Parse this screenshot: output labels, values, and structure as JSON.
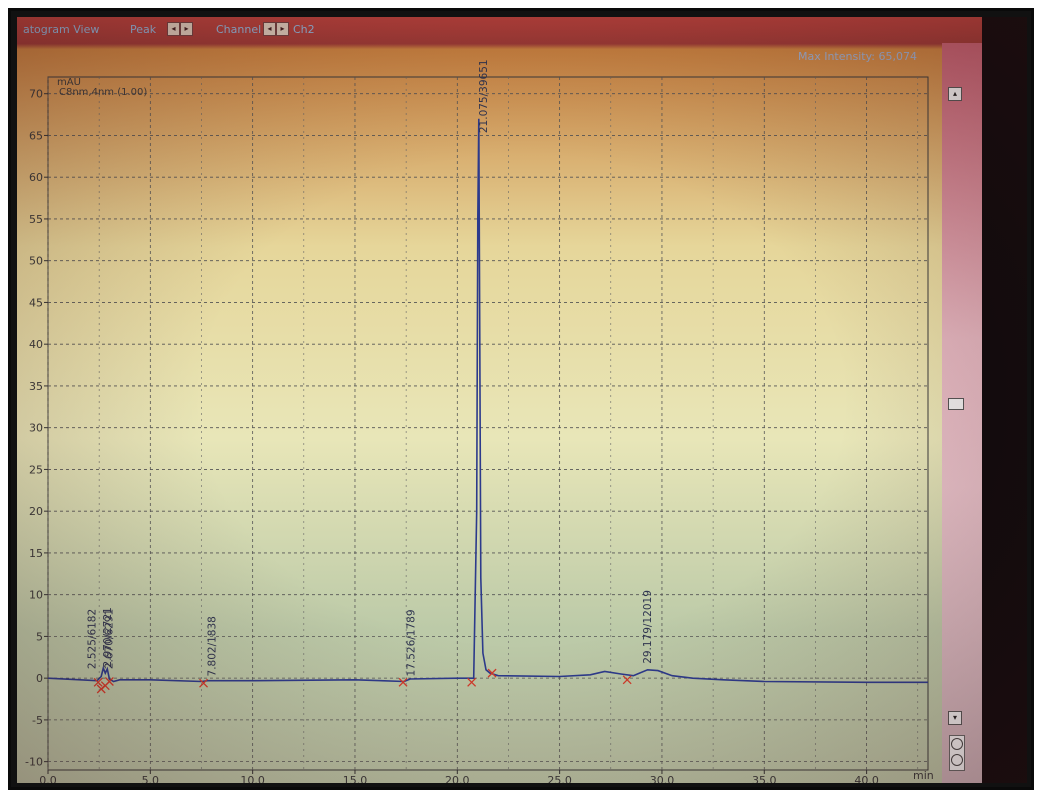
{
  "toolbar": {
    "view_label": "atogram View",
    "peak_label": "Peak",
    "channel_label": "Channel",
    "channel_value": "Ch2"
  },
  "max_intensity_label": "Max Intensity",
  "max_intensity_value": "65,074",
  "chart_data": {
    "type": "line",
    "y_unit_label": "mAU",
    "channel_label": "C8nm,4nm (1.00)",
    "xlabel": "min",
    "xlim": [
      0,
      43
    ],
    "ylim": [
      -11,
      72
    ],
    "x_ticks": [
      "0.0",
      "5.0",
      "10.0",
      "15.0",
      "20.0",
      "25.0",
      "30.0",
      "35.0",
      "40.0"
    ],
    "y_ticks": [
      "70",
      "65",
      "60",
      "55",
      "50",
      "45",
      "40",
      "35",
      "30",
      "25",
      "20",
      "15",
      "10",
      "5",
      "0",
      "-5",
      "-10"
    ],
    "grid": true,
    "series": [
      {
        "color": "#2c3a8c",
        "x": [
          0,
          2.4,
          2.6,
          2.7,
          2.8,
          2.9,
          3.0,
          3.2,
          3.5,
          5,
          7.5,
          7.8,
          8.2,
          10,
          15,
          17.4,
          17.7,
          20,
          20.8,
          20.95,
          21.0,
          21.05,
          21.1,
          21.15,
          21.25,
          21.4,
          21.6,
          22.0,
          25,
          26.5,
          27.2,
          28.0,
          28.6,
          29.3,
          29.8,
          30.5,
          31.5,
          33,
          35,
          40,
          43
        ],
        "y": [
          0,
          -0.3,
          0.2,
          1.2,
          0.6,
          1.1,
          -0.1,
          -0.4,
          -0.2,
          -0.2,
          -0.4,
          -0.3,
          -0.3,
          -0.3,
          -0.2,
          -0.4,
          -0.1,
          0,
          0,
          20,
          55,
          67,
          40,
          12,
          3,
          1,
          0.6,
          0.3,
          0.2,
          0.4,
          0.8,
          0.5,
          0.3,
          1.0,
          0.9,
          0.3,
          0.0,
          -0.2,
          -0.4,
          -0.5,
          -0.5
        ]
      }
    ],
    "peak_labels": [
      {
        "x": 2.67,
        "y": 0.6,
        "text": "2.670/6291"
      },
      {
        "x": 2.97,
        "y": 0.8,
        "text": "2.970/2721"
      },
      {
        "x": 2.51,
        "y": 0.6,
        "text": "2.525/6182"
      },
      {
        "x": 7.8,
        "y": 0.2,
        "text": "7.802/1838"
      },
      {
        "x": 17.52,
        "y": 0.2,
        "text": "17.526/1789"
      },
      {
        "x": 21.07,
        "y": 64.8,
        "text": "21.075/39651"
      },
      {
        "x": 29.18,
        "y": 1.0,
        "text": "29.179/12019"
      }
    ],
    "integration_marks": [
      {
        "x": 2.45,
        "y": -0.5
      },
      {
        "x": 2.6,
        "y": -1.3
      },
      {
        "x": 2.8,
        "y": -0.9
      },
      {
        "x": 3.0,
        "y": -0.4
      },
      {
        "x": 7.6,
        "y": -0.6
      },
      {
        "x": 17.35,
        "y": -0.5
      },
      {
        "x": 20.7,
        "y": -0.5
      },
      {
        "x": 21.7,
        "y": 0.6
      },
      {
        "x": 28.3,
        "y": -0.2
      }
    ]
  }
}
